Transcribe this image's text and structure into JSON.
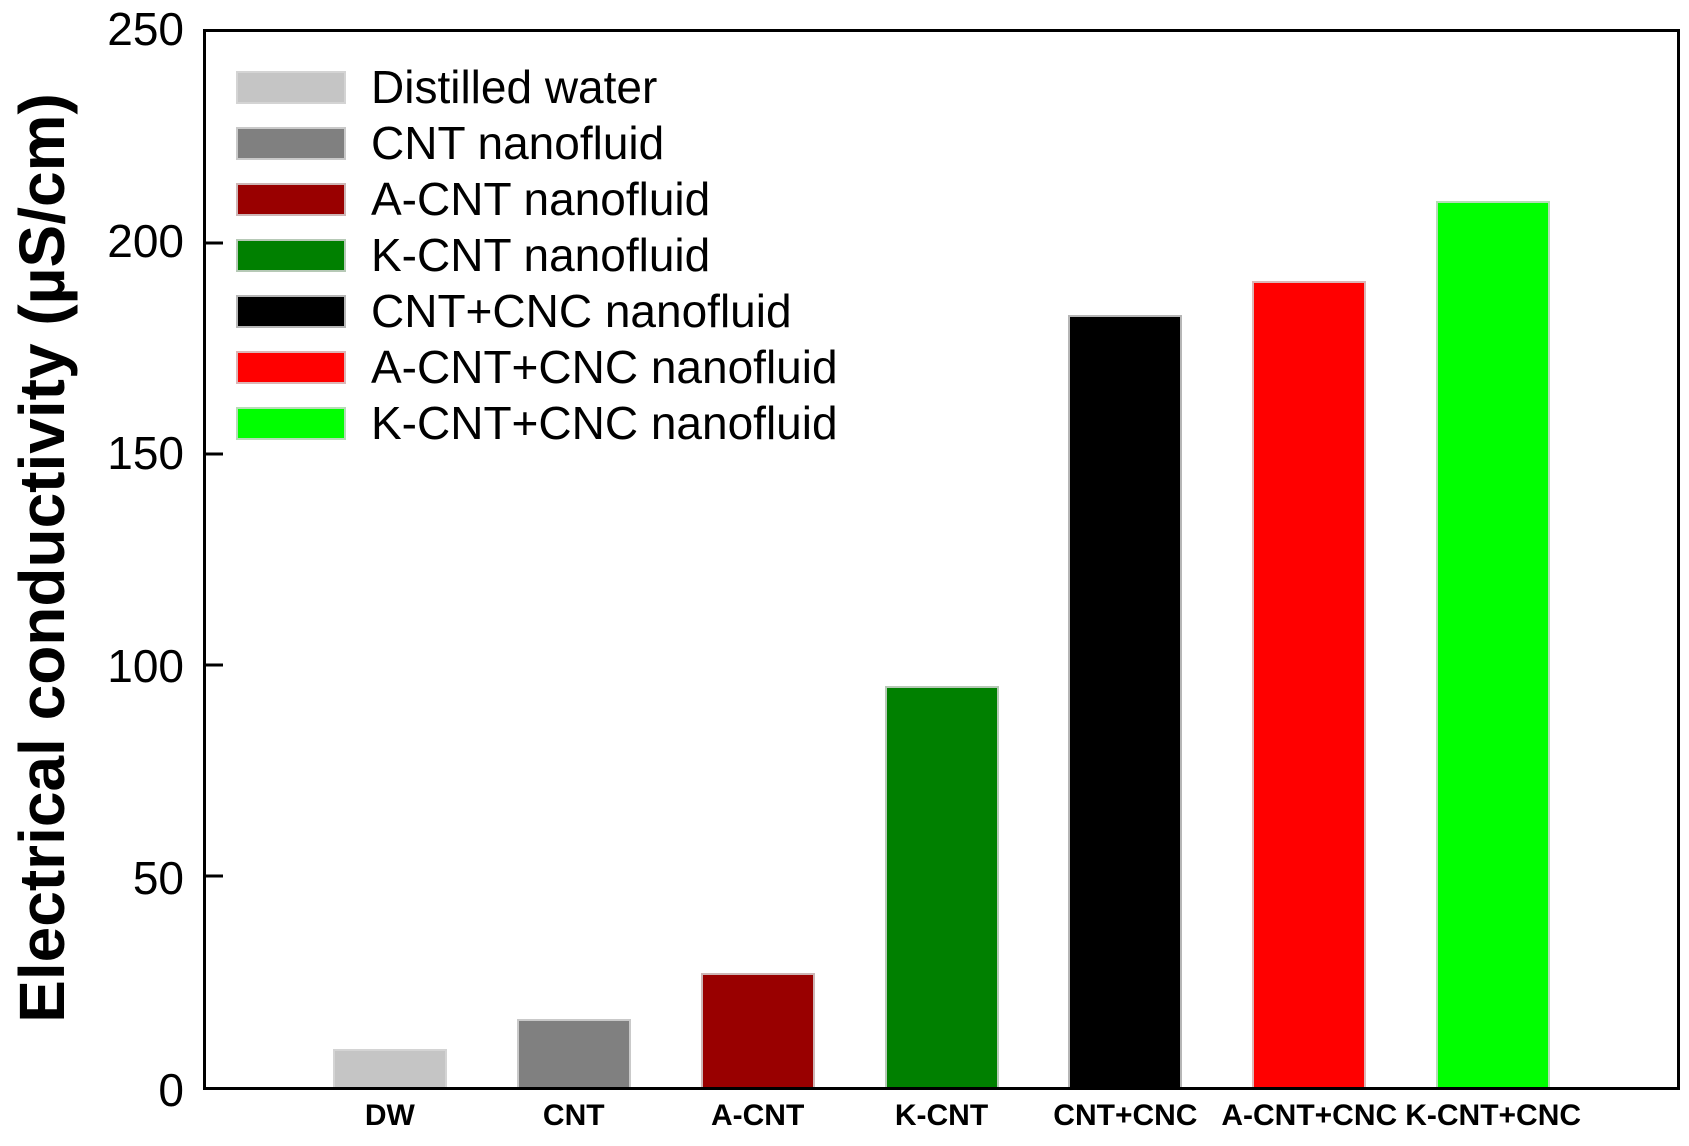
{
  "figure": {
    "background": "#ffffff",
    "frame_color": "#000000",
    "text_color": "#000000"
  },
  "chart_data": {
    "type": "bar",
    "title": "",
    "xlabel": "",
    "ylabel": "Electrical conductivity (µS/cm)",
    "ylim": [
      0,
      250
    ],
    "yticks": [
      0,
      50,
      100,
      150,
      200,
      250
    ],
    "grid": false,
    "legend_position": "upper-left",
    "categories": [
      "DW",
      "CNT",
      "A-CNT",
      "K-CNT",
      "CNT+CNC",
      "A-CNT+CNC",
      "K-CNT+CNC"
    ],
    "values": [
      9,
      16,
      27,
      95,
      183,
      191,
      210
    ],
    "colors": [
      "#c5c5c5",
      "#808080",
      "#990000",
      "#008000",
      "#000000",
      "#ff0000",
      "#00ff00"
    ],
    "legend_labels": [
      "Distilled water",
      "CNT nanofluid",
      "A-CNT nanofluid",
      "K-CNT nanofluid",
      "CNT+CNC nanofluid",
      "A-CNT+CNC nanofluid",
      "K-CNT+CNC nanofluid"
    ]
  }
}
